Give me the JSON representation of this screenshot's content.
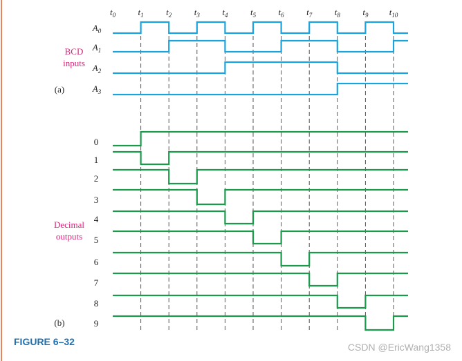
{
  "figure": {
    "caption": "FIGURE 6–32",
    "panel_a": "(a)",
    "panel_b": "(b)",
    "input_group_label": [
      "BCD",
      "inputs"
    ],
    "output_group_label": [
      "Decimal",
      "outputs"
    ],
    "watermark": "CSDN @EricWang1358"
  },
  "colors": {
    "input_wave": "#1aa3dd",
    "output_wave": "#1a9a4a",
    "group_label": "#d6247a",
    "caption": "#1f6fb0",
    "grid": "#555555"
  },
  "chart_data": {
    "type": "timing-diagram",
    "time_labels": [
      "t0",
      "t1",
      "t2",
      "t3",
      "t4",
      "t5",
      "t6",
      "t7",
      "t8",
      "t9",
      "t10"
    ],
    "inputs": [
      {
        "name": "A0",
        "levels": [
          0,
          1,
          0,
          1,
          0,
          1,
          0,
          1,
          0,
          1,
          0
        ]
      },
      {
        "name": "A1",
        "levels": [
          0,
          0,
          1,
          1,
          0,
          0,
          1,
          1,
          0,
          0,
          1
        ]
      },
      {
        "name": "A2",
        "levels": [
          0,
          0,
          0,
          0,
          1,
          1,
          1,
          1,
          0,
          0,
          0
        ]
      },
      {
        "name": "A3",
        "levels": [
          0,
          0,
          0,
          0,
          0,
          0,
          0,
          0,
          1,
          1,
          1
        ]
      }
    ],
    "outputs": [
      {
        "name": "0",
        "active_low_interval": 0
      },
      {
        "name": "1",
        "active_low_interval": 1
      },
      {
        "name": "2",
        "active_low_interval": 2
      },
      {
        "name": "3",
        "active_low_interval": 3
      },
      {
        "name": "4",
        "active_low_interval": 4
      },
      {
        "name": "5",
        "active_low_interval": 5
      },
      {
        "name": "6",
        "active_low_interval": 6
      },
      {
        "name": "7",
        "active_low_interval": 7
      },
      {
        "name": "8",
        "active_low_interval": 8
      },
      {
        "name": "9",
        "active_low_interval": 9
      }
    ]
  }
}
